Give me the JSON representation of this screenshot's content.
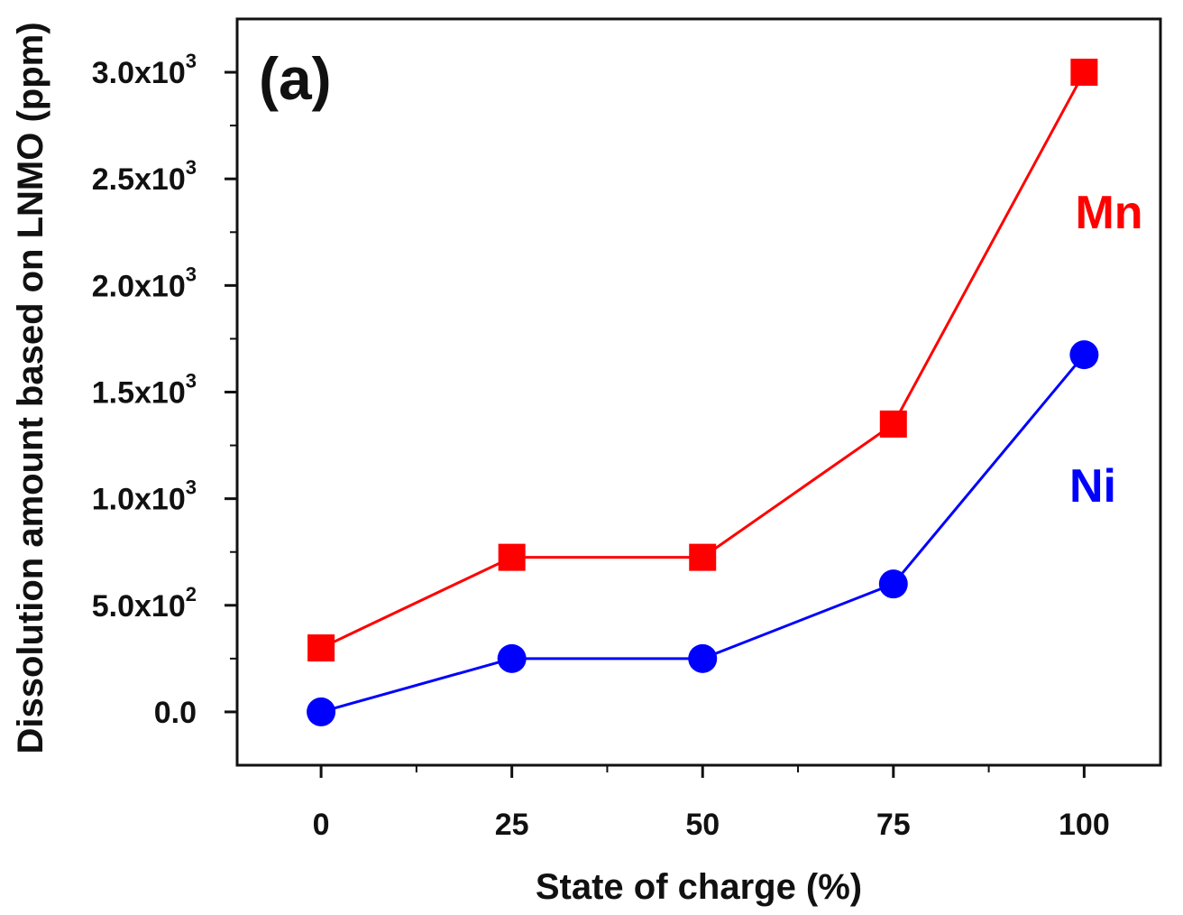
{
  "chart_data": {
    "type": "line",
    "panel_label": "(a)",
    "xlabel": "State of charge (%)",
    "ylabel": "Dissolution amount based on LNMO (ppm)",
    "x": [
      0,
      25,
      50,
      75,
      100
    ],
    "xlim": [
      -11,
      110
    ],
    "ylim": [
      -250,
      3250
    ],
    "xticks": [
      0,
      25,
      50,
      75,
      100
    ],
    "yticks": [
      {
        "value": 0,
        "mantissa": "0.0",
        "exponent": ""
      },
      {
        "value": 500,
        "mantissa": "5.0x10",
        "exponent": "2"
      },
      {
        "value": 1000,
        "mantissa": "1.0x10",
        "exponent": "3"
      },
      {
        "value": 1500,
        "mantissa": "1.5x10",
        "exponent": "3"
      },
      {
        "value": 2000,
        "mantissa": "2.0x10",
        "exponent": "3"
      },
      {
        "value": 2500,
        "mantissa": "2.5x10",
        "exponent": "3"
      },
      {
        "value": 3000,
        "mantissa": "3.0x10",
        "exponent": "3"
      }
    ],
    "grid": false,
    "series": [
      {
        "name": "Mn",
        "color": "#ff0000",
        "marker": "square",
        "values": [
          300,
          725,
          725,
          1350,
          3000
        ]
      },
      {
        "name": "Ni",
        "color": "#0000ff",
        "marker": "circle",
        "values": [
          0,
          250,
          250,
          600,
          1675
        ]
      }
    ]
  }
}
